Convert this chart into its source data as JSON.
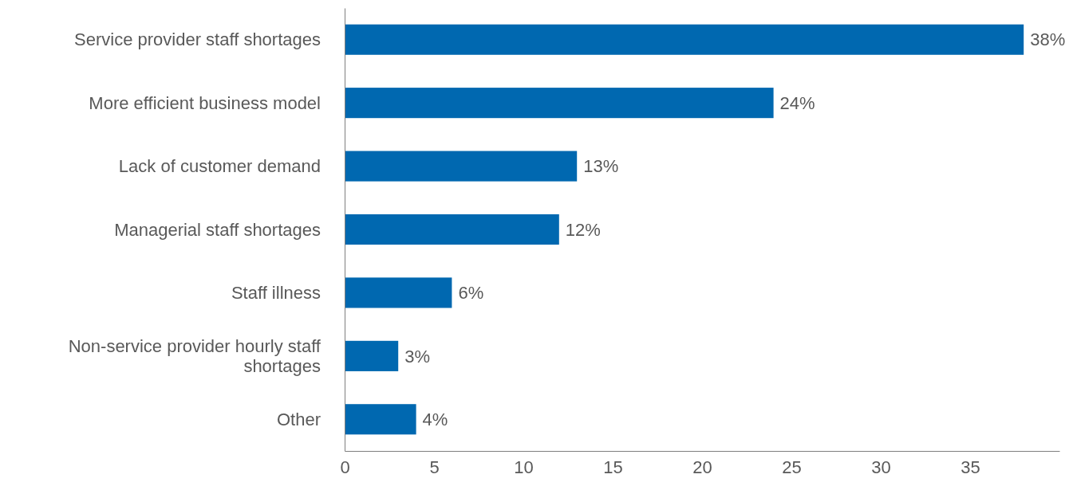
{
  "chart_data": {
    "type": "bar",
    "orientation": "horizontal",
    "categories": [
      "Service provider staff shortages",
      "More efficient business model",
      "Lack of customer demand",
      "Managerial staff shortages",
      "Staff illness",
      "Non-service provider hourly staff shortages",
      "Other"
    ],
    "values": [
      38,
      24,
      13,
      12,
      6,
      3,
      4
    ],
    "value_labels": [
      "38%",
      "24%",
      "13%",
      "12%",
      "6%",
      "3%",
      "4%"
    ],
    "color": "#0068b0",
    "xlim": [
      0,
      40
    ],
    "xticks": [
      0,
      5,
      10,
      15,
      20,
      25,
      30,
      35
    ],
    "grid": false
  }
}
